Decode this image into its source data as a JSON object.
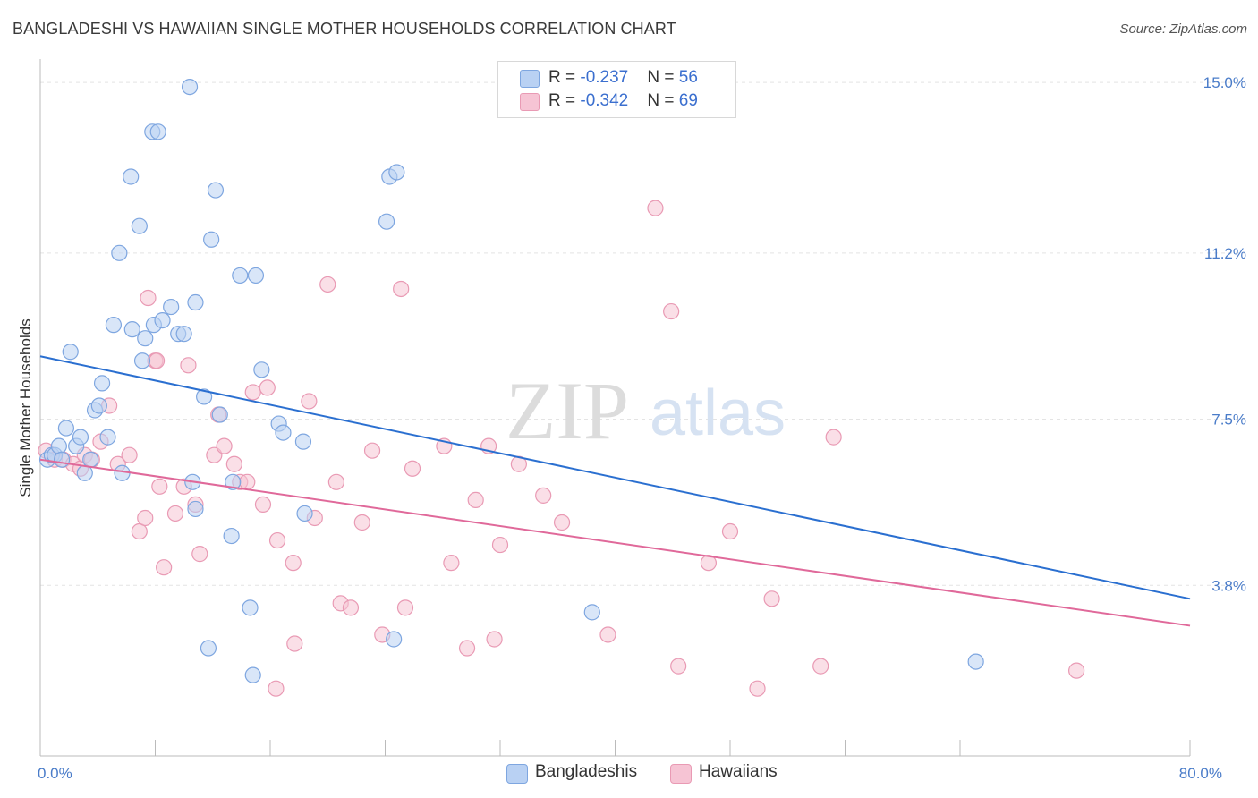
{
  "header": {
    "title": "BANGLADESHI VS HAWAIIAN SINGLE MOTHER HOUSEHOLDS CORRELATION CHART",
    "source": "Source: ZipAtlas.com"
  },
  "legend": {
    "rows": [
      {
        "r_label": "R = ",
        "r_value": "-0.237",
        "n_label": "N = ",
        "n_value": "56"
      },
      {
        "r_label": "R = ",
        "r_value": "-0.342",
        "n_label": "N = ",
        "n_value": "69"
      }
    ]
  },
  "colors": {
    "blue_fill": "#b9d1f3",
    "blue_stroke": "#7ea6e0",
    "blue_line": "#2a6fd0",
    "pink_fill": "#f6c4d4",
    "pink_stroke": "#e99ab4",
    "pink_line": "#e0699a",
    "grid": "#e4e4e4",
    "tick_label": "#4a7cc9"
  },
  "watermark": {
    "part1": "ZIP",
    "part2": "atlas"
  },
  "chart_data": {
    "type": "scatter",
    "ylabel": "Single Mother Households",
    "xlim": [
      0,
      80
    ],
    "ylim": [
      0,
      15.4
    ],
    "x_tick_labels": [
      {
        "value": 0,
        "label": "0.0%"
      },
      {
        "value": 80,
        "label": "80.0%"
      }
    ],
    "y_tick_labels": [
      {
        "value": 3.8,
        "label": "3.8%"
      },
      {
        "value": 7.5,
        "label": "7.5%"
      },
      {
        "value": 11.2,
        "label": "11.2%"
      },
      {
        "value": 15.0,
        "label": "15.0%"
      }
    ],
    "x_minor_ticks": [
      8,
      16,
      24,
      32,
      40,
      48,
      56,
      64,
      72,
      80
    ],
    "grid": true,
    "legend_position": "top-center",
    "series": [
      {
        "name": "Bangladeshis",
        "trend": [
          [
            0,
            8.9
          ],
          [
            80,
            3.5
          ]
        ],
        "points": [
          [
            0.5,
            6.6
          ],
          [
            0.8,
            6.7
          ],
          [
            1.0,
            6.7
          ],
          [
            1.3,
            6.9
          ],
          [
            1.5,
            6.6
          ],
          [
            1.8,
            7.3
          ],
          [
            2.5,
            6.9
          ],
          [
            2.8,
            7.1
          ],
          [
            3.1,
            6.3
          ],
          [
            3.5,
            6.6
          ],
          [
            2.1,
            9.0
          ],
          [
            4.3,
            8.3
          ],
          [
            3.8,
            7.7
          ],
          [
            4.1,
            7.8
          ],
          [
            4.7,
            7.1
          ],
          [
            5.7,
            6.3
          ],
          [
            5.1,
            9.6
          ],
          [
            6.4,
            9.5
          ],
          [
            7.1,
            8.8
          ],
          [
            7.3,
            9.3
          ],
          [
            7.9,
            9.6
          ],
          [
            8.5,
            9.7
          ],
          [
            9.1,
            10.0
          ],
          [
            9.6,
            9.4
          ],
          [
            10.0,
            9.4
          ],
          [
            10.8,
            10.1
          ],
          [
            6.3,
            12.9
          ],
          [
            6.9,
            11.8
          ],
          [
            5.5,
            11.2
          ],
          [
            7.8,
            13.9
          ],
          [
            8.2,
            13.9
          ],
          [
            10.4,
            14.9
          ],
          [
            12.2,
            12.6
          ],
          [
            11.9,
            11.5
          ],
          [
            13.9,
            10.7
          ],
          [
            15.0,
            10.7
          ],
          [
            11.4,
            8.0
          ],
          [
            12.5,
            7.6
          ],
          [
            10.6,
            6.1
          ],
          [
            10.8,
            5.5
          ],
          [
            13.4,
            6.1
          ],
          [
            15.4,
            8.6
          ],
          [
            16.6,
            7.4
          ],
          [
            16.9,
            7.2
          ],
          [
            18.3,
            7.0
          ],
          [
            18.4,
            5.4
          ],
          [
            13.3,
            4.9
          ],
          [
            14.6,
            3.3
          ],
          [
            11.7,
            2.4
          ],
          [
            14.8,
            1.8
          ],
          [
            24.3,
            12.9
          ],
          [
            24.8,
            13.0
          ],
          [
            24.1,
            11.9
          ],
          [
            24.6,
            2.6
          ],
          [
            38.4,
            3.2
          ],
          [
            65.1,
            2.1
          ]
        ]
      },
      {
        "name": "Hawaiians",
        "trend": [
          [
            0,
            6.6
          ],
          [
            80,
            2.9
          ]
        ],
        "points": [
          [
            0.4,
            6.8
          ],
          [
            1.0,
            6.6
          ],
          [
            1.6,
            6.6
          ],
          [
            2.3,
            6.5
          ],
          [
            2.8,
            6.4
          ],
          [
            3.1,
            6.7
          ],
          [
            3.6,
            6.6
          ],
          [
            4.2,
            7.0
          ],
          [
            4.8,
            7.8
          ],
          [
            5.4,
            6.5
          ],
          [
            6.2,
            6.7
          ],
          [
            6.9,
            5.0
          ],
          [
            7.3,
            5.3
          ],
          [
            8.3,
            6.0
          ],
          [
            8.6,
            4.2
          ],
          [
            9.4,
            5.4
          ],
          [
            10.0,
            6.0
          ],
          [
            10.8,
            5.6
          ],
          [
            11.1,
            4.5
          ],
          [
            12.1,
            6.7
          ],
          [
            12.4,
            7.6
          ],
          [
            12.8,
            6.9
          ],
          [
            13.5,
            6.5
          ],
          [
            13.9,
            6.1
          ],
          [
            14.4,
            6.1
          ],
          [
            14.8,
            8.1
          ],
          [
            15.8,
            8.2
          ],
          [
            15.5,
            5.6
          ],
          [
            16.5,
            4.8
          ],
          [
            17.6,
            4.3
          ],
          [
            18.7,
            7.9
          ],
          [
            19.1,
            5.3
          ],
          [
            20.6,
            6.1
          ],
          [
            20.9,
            3.4
          ],
          [
            21.6,
            3.3
          ],
          [
            22.4,
            5.2
          ],
          [
            23.1,
            6.8
          ],
          [
            23.8,
            2.7
          ],
          [
            25.4,
            3.3
          ],
          [
            25.9,
            6.4
          ],
          [
            28.1,
            6.9
          ],
          [
            28.6,
            4.3
          ],
          [
            29.7,
            2.4
          ],
          [
            30.3,
            5.7
          ],
          [
            31.2,
            6.9
          ],
          [
            31.6,
            2.6
          ],
          [
            32.0,
            4.7
          ],
          [
            33.3,
            6.5
          ],
          [
            35.0,
            5.8
          ],
          [
            36.3,
            5.2
          ],
          [
            20.0,
            10.5
          ],
          [
            25.1,
            10.4
          ],
          [
            7.5,
            10.2
          ],
          [
            8.0,
            8.8
          ],
          [
            10.3,
            8.7
          ],
          [
            16.4,
            1.5
          ],
          [
            17.7,
            2.5
          ],
          [
            39.5,
            2.7
          ],
          [
            42.8,
            12.2
          ],
          [
            43.9,
            9.9
          ],
          [
            44.4,
            2.0
          ],
          [
            46.5,
            4.3
          ],
          [
            48.0,
            5.0
          ],
          [
            49.9,
            1.5
          ],
          [
            50.9,
            3.5
          ],
          [
            54.3,
            2.0
          ],
          [
            55.2,
            7.1
          ],
          [
            72.1,
            1.9
          ],
          [
            8.1,
            8.8
          ]
        ]
      }
    ]
  }
}
